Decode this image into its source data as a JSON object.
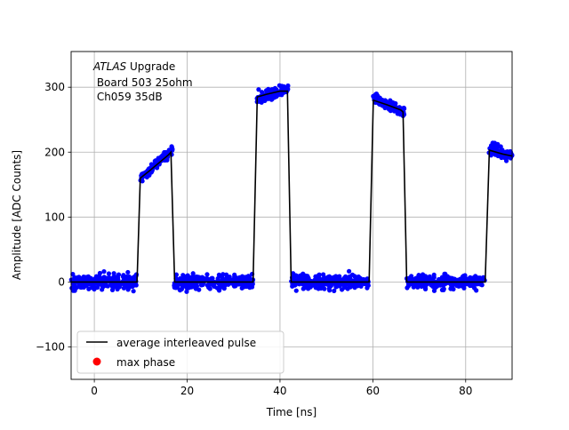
{
  "chart_data": {
    "type": "scatter",
    "xlabel": "Time [ns]",
    "ylabel": "Amplitude [ADC Counts]",
    "xlim": [
      -5,
      90
    ],
    "ylim": [
      -150,
      355
    ],
    "xticks": [
      0,
      20,
      40,
      60,
      80
    ],
    "yticks": [
      -100,
      0,
      100,
      200,
      300
    ],
    "xtick_labels": [
      "0",
      "20",
      "40",
      "60",
      "80"
    ],
    "ytick_labels": [
      "−100",
      "0",
      "100",
      "200",
      "300"
    ],
    "grid": true,
    "annotation": {
      "line1_italic": "ATLAS",
      "line1_rest": " Upgrade",
      "line2": " Board 503 25ohm",
      "line3": " Ch059 35dB"
    },
    "legend": {
      "placement": "lower-left",
      "entries": [
        {
          "label": "average interleaved pulse",
          "kind": "line",
          "color": "#000000"
        },
        {
          "label": "max phase",
          "kind": "marker",
          "color": "#ff0000"
        }
      ]
    },
    "average_pulse": {
      "name": "average interleaved pulse",
      "color": "#000000",
      "x": [
        -5,
        9.2,
        9.9,
        12,
        16,
        16.5,
        17.3,
        34.2,
        35.1,
        37,
        40,
        41.6,
        42.4,
        59.2,
        60.1,
        63,
        66,
        66.5,
        67.3,
        84.2,
        85.1,
        88,
        90
      ],
      "y": [
        0,
        0,
        160,
        172,
        196,
        200,
        0,
        0,
        285,
        289,
        294,
        294,
        0,
        0,
        280,
        273,
        265,
        262,
        0,
        0,
        203,
        197,
        194
      ]
    },
    "samples": {
      "color": "#0000ff",
      "segments": [
        {
          "x_start": -5,
          "x_end": 9.2,
          "y_start": 0,
          "y_end": 0,
          "spread": 11
        },
        {
          "x_start": 9.9,
          "x_end": 16.9,
          "y_start": 158,
          "y_end": 205,
          "spread": 7
        },
        {
          "x_start": 17.2,
          "x_end": 34.2,
          "y_start": 0,
          "y_end": 0,
          "spread": 10
        },
        {
          "x_start": 35.0,
          "x_end": 41.8,
          "y_start": 283,
          "y_end": 297,
          "spread": 8
        },
        {
          "x_start": 42.4,
          "x_end": 59.2,
          "y_start": 0,
          "y_end": 0,
          "spread": 10
        },
        {
          "x_start": 60.0,
          "x_end": 66.9,
          "y_start": 284,
          "y_end": 261,
          "spread": 8
        },
        {
          "x_start": 67.3,
          "x_end": 84.2,
          "y_start": 0,
          "y_end": 0,
          "spread": 10
        },
        {
          "x_start": 85.0,
          "x_end": 90,
          "y_start": 207,
          "y_end": 193,
          "spread": 8
        }
      ]
    }
  }
}
